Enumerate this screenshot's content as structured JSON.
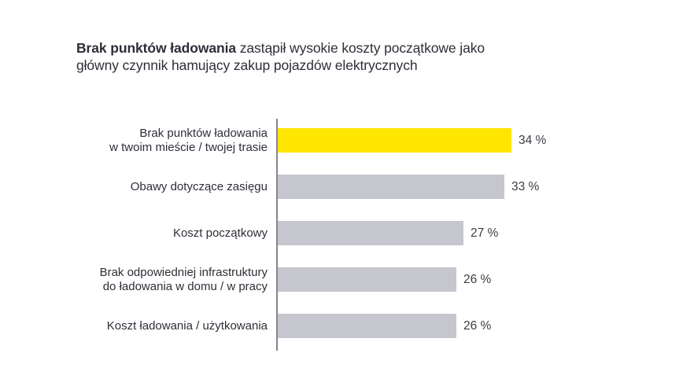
{
  "title": {
    "bold_part": "Brak punktów ładowania",
    "rest_part": " zastąpił wysokie koszty początkowe jako główny czynnik hamujący zakup pojazdów elektrycznych"
  },
  "colors": {
    "highlight_bar": "#ffe600",
    "default_bar": "#c6c6ce",
    "axis_line": "#85858f",
    "text": "#2e2e38"
  },
  "chart_data": {
    "type": "bar",
    "orientation": "horizontal",
    "title": "Brak punktów ładowania zastąpił wysokie koszty początkowe jako główny czynnik hamujący zakup pojazdów elektrycznych",
    "categories": [
      "Brak punktów ładowania\nw twoim mieście / twojej trasie",
      "Obawy dotyczące zasięgu",
      "Koszt początkowy",
      "Brak odpowiedniej infrastruktury\ndo ładowania w domu / w pracy",
      "Koszt ładowania / użytkowania"
    ],
    "values": [
      34,
      33,
      27,
      26,
      26
    ],
    "value_labels": [
      "34 %",
      "33 %",
      "27 %",
      "26 %",
      "26 %"
    ],
    "bar_colors": [
      "#ffe600",
      "#c6c6ce",
      "#c6c6ce",
      "#c6c6ce",
      "#c6c6ce"
    ],
    "xlim": [
      0,
      34
    ],
    "grid": false,
    "legend": false,
    "xlabel": "",
    "ylabel": ""
  }
}
